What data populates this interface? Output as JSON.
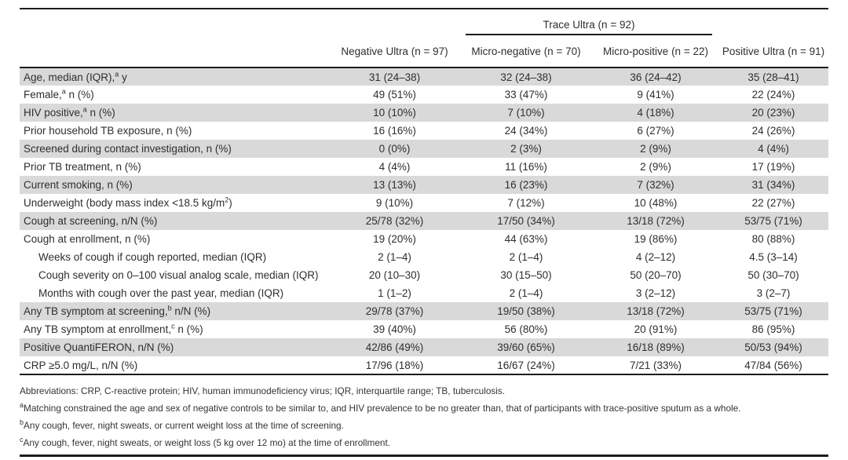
{
  "table": {
    "group_header": "Trace Ultra (n = 92)",
    "columns": [
      "Negative Ultra (n = 97)",
      "Micro-negative (n = 70)",
      "Micro-positive (n = 22)",
      "Positive Ultra (n = 91)"
    ],
    "rows": [
      {
        "shaded": true,
        "indent": false,
        "label": {
          "pre": "Age, median (IQR),",
          "sup": "a",
          "post": " y"
        },
        "values": [
          "31 (24–38)",
          "32 (24–38)",
          "36 (24–42)",
          "35 (28–41)"
        ]
      },
      {
        "shaded": false,
        "indent": false,
        "label": {
          "pre": "Female,",
          "sup": "a",
          "post": " n (%)"
        },
        "values": [
          "49 (51%)",
          "33 (47%)",
          "9 (41%)",
          "22 (24%)"
        ]
      },
      {
        "shaded": true,
        "indent": false,
        "label": {
          "pre": "HIV positive,",
          "sup": "a",
          "post": " n (%)"
        },
        "values": [
          "10 (10%)",
          "7 (10%)",
          "4 (18%)",
          "20 (23%)"
        ]
      },
      {
        "shaded": false,
        "indent": false,
        "label": {
          "pre": "Prior household TB exposure, n (%)",
          "sup": "",
          "post": ""
        },
        "values": [
          "16 (16%)",
          "24 (34%)",
          "6 (27%)",
          "24 (26%)"
        ]
      },
      {
        "shaded": true,
        "indent": false,
        "label": {
          "pre": "Screened during contact investigation, n (%)",
          "sup": "",
          "post": ""
        },
        "values": [
          "0 (0%)",
          "2 (3%)",
          "2 (9%)",
          "4 (4%)"
        ]
      },
      {
        "shaded": false,
        "indent": false,
        "label": {
          "pre": "Prior TB treatment, n (%)",
          "sup": "",
          "post": ""
        },
        "values": [
          "4 (4%)",
          "11 (16%)",
          "2 (9%)",
          "17 (19%)"
        ]
      },
      {
        "shaded": true,
        "indent": false,
        "label": {
          "pre": "Current smoking, n (%)",
          "sup": "",
          "post": ""
        },
        "values": [
          "13 (13%)",
          "16 (23%)",
          "7 (32%)",
          "31 (34%)"
        ]
      },
      {
        "shaded": false,
        "indent": false,
        "label": {
          "pre": "Underweight (body mass index <18.5 kg/m",
          "sup": "2",
          "post": ")"
        },
        "values": [
          "9 (10%)",
          "7 (12%)",
          "10 (48%)",
          "22 (27%)"
        ]
      },
      {
        "shaded": true,
        "indent": false,
        "label": {
          "pre": "Cough at screening, n/N (%)",
          "sup": "",
          "post": ""
        },
        "values": [
          "25/78 (32%)",
          "17/50 (34%)",
          "13/18 (72%)",
          "53/75 (71%)"
        ]
      },
      {
        "shaded": false,
        "indent": false,
        "label": {
          "pre": "Cough at enrollment, n (%)",
          "sup": "",
          "post": ""
        },
        "values": [
          "19 (20%)",
          "44 (63%)",
          "19 (86%)",
          "80 (88%)"
        ]
      },
      {
        "shaded": false,
        "indent": true,
        "label": {
          "pre": "Weeks of cough if cough reported, median (IQR)",
          "sup": "",
          "post": ""
        },
        "values": [
          "2 (1–4)",
          "2 (1–4)",
          "4 (2–12)",
          "4.5 (3–14)"
        ]
      },
      {
        "shaded": false,
        "indent": true,
        "label": {
          "pre": "Cough severity on 0–100 visual analog scale, median (IQR)",
          "sup": "",
          "post": ""
        },
        "values": [
          "20 (10–30)",
          "30 (15–50)",
          "50 (20–70)",
          "50 (30–70)"
        ]
      },
      {
        "shaded": false,
        "indent": true,
        "label": {
          "pre": "Months with cough over the past year, median (IQR)",
          "sup": "",
          "post": ""
        },
        "values": [
          "1 (1–2)",
          "2 (1–4)",
          "3 (2–12)",
          "3 (2–7)"
        ]
      },
      {
        "shaded": true,
        "indent": false,
        "label": {
          "pre": "Any TB symptom at screening,",
          "sup": "b",
          "post": " n/N (%)"
        },
        "values": [
          "29/78 (37%)",
          "19/50 (38%)",
          "13/18 (72%)",
          "53/75 (71%)"
        ]
      },
      {
        "shaded": false,
        "indent": false,
        "label": {
          "pre": "Any TB symptom at enrollment,",
          "sup": "c",
          "post": " n (%)"
        },
        "values": [
          "39 (40%)",
          "56 (80%)",
          "20 (91%)",
          "86 (95%)"
        ]
      },
      {
        "shaded": true,
        "indent": false,
        "label": {
          "pre": "Positive QuantiFERON, n/N (%)",
          "sup": "",
          "post": ""
        },
        "values": [
          "42/86 (49%)",
          "39/60 (65%)",
          "16/18 (89%)",
          "50/53 (94%)"
        ]
      },
      {
        "shaded": false,
        "indent": false,
        "label": {
          "pre": "CRP ≥5.0 mg/L, n/N (%)",
          "sup": "",
          "post": ""
        },
        "values": [
          "17/96 (18%)",
          "16/67 (24%)",
          "7/21 (33%)",
          "47/84 (56%)"
        ]
      }
    ]
  },
  "footnotes": [
    {
      "sup": "",
      "text": "Abbreviations: CRP, C-reactive protein; HIV, human immunodeficiency virus; IQR, interquartile range; TB, tuberculosis."
    },
    {
      "sup": "a",
      "text": "Matching constrained the age and sex of negative controls to be similar to, and HIV prevalence to be no greater than, that of participants with trace-positive sputum as a whole."
    },
    {
      "sup": "b",
      "text": "Any cough, fever, night sweats, or current weight loss at the time of screening."
    },
    {
      "sup": "c",
      "text": "Any cough, fever, night sweats, or weight loss (5 kg over 12 mo) at the time of enrollment."
    }
  ],
  "colors": {
    "row_shading": "#d9d9d9",
    "text": "#2e2e2e",
    "rule": "#1c1c1c"
  }
}
